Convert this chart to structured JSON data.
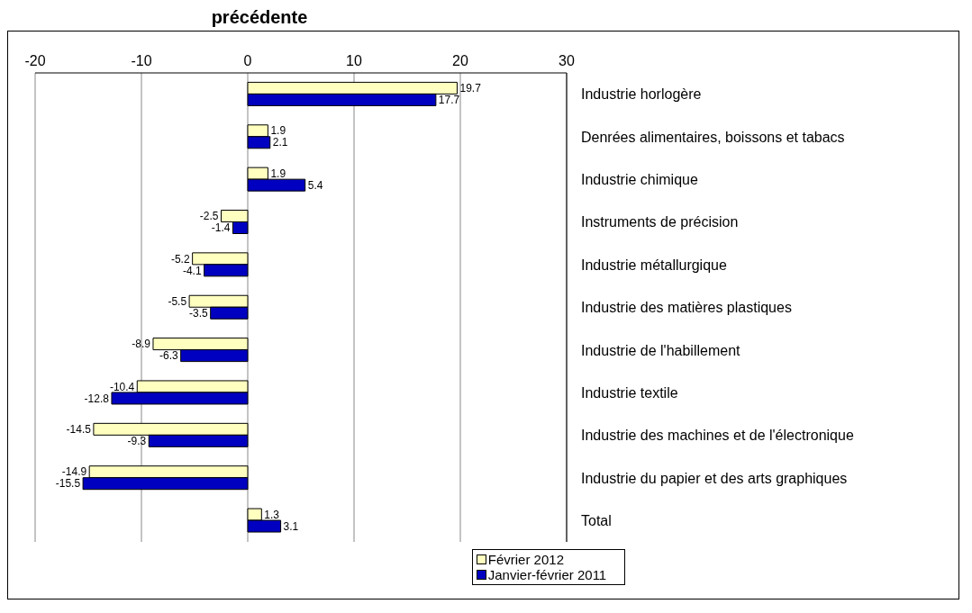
{
  "chart_data": {
    "type": "bar",
    "orientation": "horizontal",
    "title": "précédente",
    "categories": [
      "Industrie horlogère",
      "Denrées alimentaires, boissons et tabacs",
      "Industrie chimique",
      "Instruments de précision",
      "Industrie métallurgique",
      "Industrie des matières plastiques",
      "Industrie de l'habillement",
      "Industrie textile",
      "Industrie des machines et de l'électronique",
      "Industrie du papier et des arts graphiques",
      "Total"
    ],
    "series": [
      {
        "name": "Février 2012",
        "color": "#ffffc0",
        "values": [
          19.7,
          1.9,
          1.9,
          -2.5,
          -5.2,
          -5.5,
          -8.9,
          -10.4,
          -14.5,
          -14.9,
          1.3
        ]
      },
      {
        "name": "Janvier-février 2011",
        "color": "#0000c0",
        "values": [
          17.7,
          2.1,
          5.4,
          -1.4,
          -4.1,
          -3.5,
          -6.3,
          -12.8,
          -9.3,
          -15.5,
          3.1
        ]
      }
    ],
    "xlim": [
      -20,
      30
    ],
    "xticks": [
      -20,
      -10,
      0,
      10,
      20,
      30
    ],
    "grid": "x",
    "legend": "bottom",
    "data_labels": true
  }
}
